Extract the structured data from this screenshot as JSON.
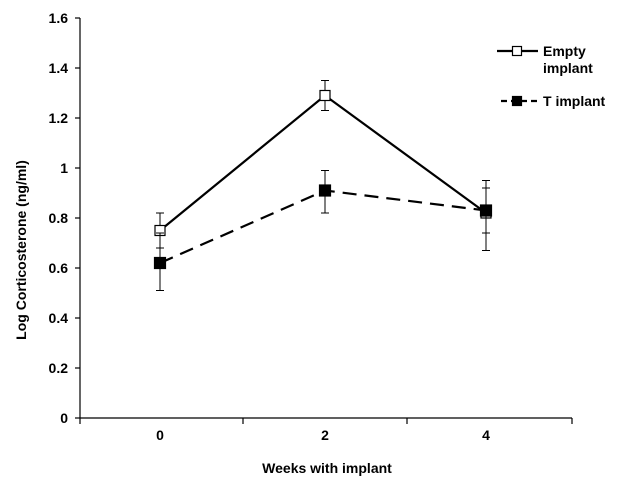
{
  "chart_data": {
    "type": "line",
    "title": "",
    "xlabel": "Weeks with implant",
    "ylabel": "Log Corticosterone (ng/ml)",
    "x": [
      0,
      2,
      4
    ],
    "x_ticks": [
      "0",
      "2",
      "4"
    ],
    "y_ticks": [
      "0",
      "0.2",
      "0.4",
      "0.6",
      "0.8",
      "1",
      "1.2",
      "1.4",
      "1.6"
    ],
    "ylim": [
      0,
      1.6
    ],
    "grid": false,
    "legend_position": "top-right",
    "series": [
      {
        "name": "Empty implant",
        "name_lines": [
          "Empty",
          "implant"
        ],
        "marker": "open-square",
        "line_style": "solid",
        "color": "#000000",
        "values": [
          0.75,
          1.29,
          0.82
        ],
        "error_upper": [
          0.82,
          1.35,
          0.92
        ],
        "error_lower": [
          0.68,
          1.23,
          0.74
        ]
      },
      {
        "name": "T implant",
        "name_lines": [
          "T implant"
        ],
        "marker": "filled-square",
        "line_style": "dashed",
        "color": "#000000",
        "values": [
          0.62,
          0.91,
          0.83
        ],
        "error_upper": [
          0.74,
          0.99,
          0.95
        ],
        "error_lower": [
          0.51,
          0.82,
          0.67
        ]
      }
    ]
  }
}
